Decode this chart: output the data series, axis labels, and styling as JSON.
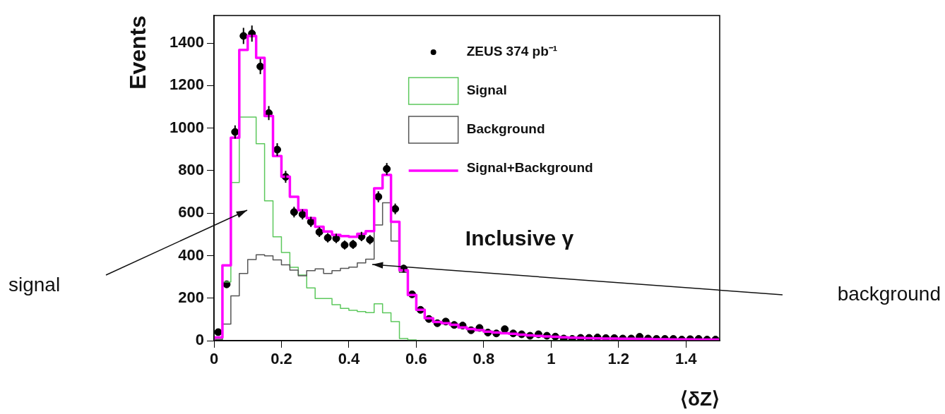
{
  "chart_data": {
    "type": "histogram",
    "xlabel": "⟨δZ⟩",
    "ylabel": "Events",
    "bins": [
      0,
      0.025,
      0.05,
      0.075,
      0.1,
      0.125,
      0.15,
      0.175,
      0.2,
      0.225,
      0.25,
      0.275,
      0.3,
      0.325,
      0.35,
      0.375,
      0.4,
      0.425,
      0.45,
      0.475,
      0.5,
      0.525,
      0.55,
      0.575,
      0.6,
      0.625,
      0.65,
      0.675,
      0.7,
      0.725,
      0.75,
      0.775,
      0.8,
      0.825,
      0.85,
      0.875,
      0.9,
      0.925,
      0.95,
      0.975,
      1,
      1.025,
      1.05,
      1.075,
      1.1,
      1.125,
      1.15,
      1.175,
      1.2,
      1.225,
      1.25,
      1.275,
      1.3,
      1.325,
      1.35,
      1.375,
      1.4,
      1.425,
      1.45,
      1.475,
      1.5
    ],
    "xlim": [
      0,
      1.5
    ],
    "xticks": [
      0,
      0.2,
      0.4,
      0.6,
      0.8,
      1,
      1.2,
      1.4
    ],
    "ylim": [
      0,
      1530
    ],
    "yticks": [
      0,
      200,
      400,
      600,
      800,
      1000,
      1200,
      1400
    ],
    "legend": "top right",
    "annotations": [
      "Inclusive γ",
      "signal",
      "background"
    ],
    "series": [
      {
        "name": "ZEUS 374 pb⁻¹",
        "type": "scatter",
        "color": "#000000",
        "marker": "circle",
        "x": [
          0.0125,
          0.0375,
          0.0625,
          0.0875,
          0.1125,
          0.1375,
          0.1625,
          0.1875,
          0.2125,
          0.2375,
          0.2625,
          0.2875,
          0.3125,
          0.3375,
          0.3625,
          0.3875,
          0.4125,
          0.4375,
          0.4625,
          0.4875,
          0.5125,
          0.5375,
          0.5625,
          0.5875,
          0.6125,
          0.6375,
          0.6625,
          0.6875,
          0.7125,
          0.7375,
          0.7625,
          0.7875,
          0.8125,
          0.8375,
          0.8625,
          0.8875,
          0.9125,
          0.9375,
          0.9625,
          0.9875,
          1.0125,
          1.0375,
          1.0625,
          1.0875,
          1.1125,
          1.1375,
          1.1625,
          1.1875,
          1.2125,
          1.2375,
          1.2625,
          1.2875,
          1.3125,
          1.3375,
          1.3625,
          1.3875,
          1.4125,
          1.4375,
          1.4625,
          1.4875
        ],
        "values": [
          40,
          265,
          982,
          1434,
          1445,
          1290,
          1071,
          899,
          771,
          605,
          594,
          559,
          511,
          484,
          481,
          450,
          453,
          490,
          475,
          677,
          808,
          620,
          339,
          218,
          145,
          102,
          82,
          90,
          74,
          71,
          49,
          60,
          38,
          34,
          54,
          34,
          30,
          23,
          30,
          23,
          19,
          10,
          8,
          13,
          13,
          15,
          12,
          12,
          10,
          10,
          18,
          10,
          8,
          8,
          8,
          5,
          7,
          8,
          5,
          5
        ],
        "errors": [
          null,
          null,
          31,
          38,
          38,
          36,
          33,
          30,
          28,
          25,
          24,
          24,
          23,
          22,
          22,
          21,
          21,
          22,
          22,
          26,
          28,
          25,
          18,
          null,
          null,
          null,
          null,
          null,
          null,
          null,
          null,
          null,
          null,
          null,
          null,
          null,
          null,
          null,
          null,
          null,
          null,
          null,
          null,
          null,
          null,
          null,
          null,
          null,
          null,
          null,
          null,
          null,
          null,
          null,
          null,
          null,
          null,
          null,
          null,
          null
        ]
      },
      {
        "name": "Signal",
        "type": "histogram",
        "color": "#5cc85c",
        "values": [
          10,
          276,
          744,
          1052,
          1052,
          927,
          658,
          489,
          415,
          345,
          309,
          248,
          198,
          198,
          169,
          152,
          143,
          137,
          132,
          173,
          131,
          90,
          10,
          3,
          0,
          0,
          0,
          0,
          0,
          0,
          0,
          0,
          0,
          0,
          0,
          0,
          0,
          0,
          0,
          0,
          0,
          0,
          0,
          0,
          0,
          0,
          0,
          0,
          0,
          0,
          0,
          0,
          0,
          0,
          0,
          0,
          0,
          0,
          0,
          0
        ]
      },
      {
        "name": "Background",
        "type": "histogram",
        "color": "#555555",
        "values": [
          5,
          78,
          211,
          316,
          382,
          404,
          399,
          380,
          357,
          332,
          305,
          329,
          338,
          316,
          329,
          340,
          346,
          366,
          383,
          544,
          649,
          469,
          321,
          212,
          145,
          105,
          88,
          82,
          75,
          62,
          55,
          50,
          42,
          38,
          35,
          32,
          28,
          25,
          22,
          20,
          18,
          16,
          14,
          13,
          12,
          11,
          10,
          10,
          9,
          9,
          8,
          8,
          7,
          7,
          6,
          6,
          6,
          5,
          5,
          5
        ]
      },
      {
        "name": "Signal+Background",
        "type": "histogram",
        "color": "#ff00ff",
        "values": [
          15,
          354,
          955,
          1368,
          1434,
          1331,
          1057,
          869,
          772,
          677,
          614,
          577,
          536,
          514,
          498,
          492,
          489,
          503,
          515,
          717,
          780,
          559,
          331,
          215,
          145,
          105,
          88,
          82,
          75,
          62,
          55,
          50,
          42,
          38,
          35,
          32,
          28,
          25,
          22,
          20,
          18,
          16,
          14,
          13,
          12,
          11,
          10,
          10,
          9,
          9,
          8,
          8,
          7,
          7,
          6,
          6,
          6,
          5,
          5,
          5
        ]
      }
    ]
  }
}
